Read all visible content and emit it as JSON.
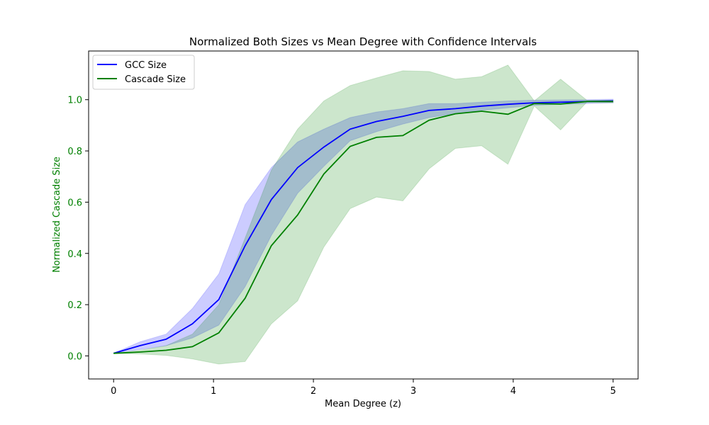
{
  "chart_data": {
    "type": "line",
    "title": "Normalized Both Sizes vs Mean Degree with Confidence Intervals",
    "xlabel": "Mean Degree (z)",
    "ylabel": "Normalized Cascade Size",
    "ylabel_color": "#008000",
    "xlim": [
      -0.25,
      5.25
    ],
    "ylim": [
      -0.09,
      1.19
    ],
    "x_ticks": [
      0,
      1,
      2,
      3,
      4,
      5
    ],
    "y_ticks": [
      0.0,
      0.2,
      0.4,
      0.6,
      0.8,
      1.0
    ],
    "y_tick_color": "#008000",
    "legend_position": "top-left",
    "grid": false,
    "x": [
      0.0,
      0.263,
      0.526,
      0.789,
      1.053,
      1.316,
      1.579,
      1.842,
      2.105,
      2.368,
      2.632,
      2.895,
      3.158,
      3.421,
      3.684,
      3.947,
      4.211,
      4.474,
      4.737,
      5.0
    ],
    "series": [
      {
        "name": "GCC Size",
        "color": "#0000ff",
        "band_opacity": 0.2,
        "values": [
          0.01,
          0.04,
          0.065,
          0.125,
          0.22,
          0.43,
          0.61,
          0.735,
          0.815,
          0.885,
          0.915,
          0.935,
          0.958,
          0.965,
          0.975,
          0.982,
          0.988,
          0.99,
          0.993,
          0.995
        ],
        "lower": [
          0.01,
          0.025,
          0.04,
          0.07,
          0.12,
          0.27,
          0.47,
          0.635,
          0.74,
          0.84,
          0.875,
          0.905,
          0.93,
          0.945,
          0.958,
          0.968,
          0.978,
          0.982,
          0.985,
          0.988
        ],
        "upper": [
          0.01,
          0.055,
          0.085,
          0.185,
          0.32,
          0.59,
          0.735,
          0.835,
          0.885,
          0.93,
          0.952,
          0.965,
          0.985,
          0.985,
          0.99,
          0.995,
          0.998,
          0.999,
          1.0,
          1.002
        ]
      },
      {
        "name": "Cascade Size",
        "color": "#008000",
        "band_opacity": 0.2,
        "values": [
          0.01,
          0.015,
          0.022,
          0.036,
          0.09,
          0.225,
          0.43,
          0.55,
          0.71,
          0.818,
          0.853,
          0.86,
          0.92,
          0.945,
          0.955,
          0.943,
          0.985,
          0.983,
          0.993,
          0.993
        ],
        "lower": [
          0.01,
          0.008,
          0.002,
          -0.012,
          -0.032,
          -0.022,
          0.125,
          0.215,
          0.425,
          0.575,
          0.62,
          0.605,
          0.73,
          0.81,
          0.82,
          0.748,
          0.975,
          0.882,
          0.99,
          0.988
        ],
        "upper": [
          0.01,
          0.022,
          0.04,
          0.085,
          0.2,
          0.46,
          0.725,
          0.885,
          0.995,
          1.055,
          1.085,
          1.113,
          1.11,
          1.08,
          1.09,
          1.135,
          0.995,
          1.08,
          0.998,
          0.998
        ]
      }
    ]
  }
}
